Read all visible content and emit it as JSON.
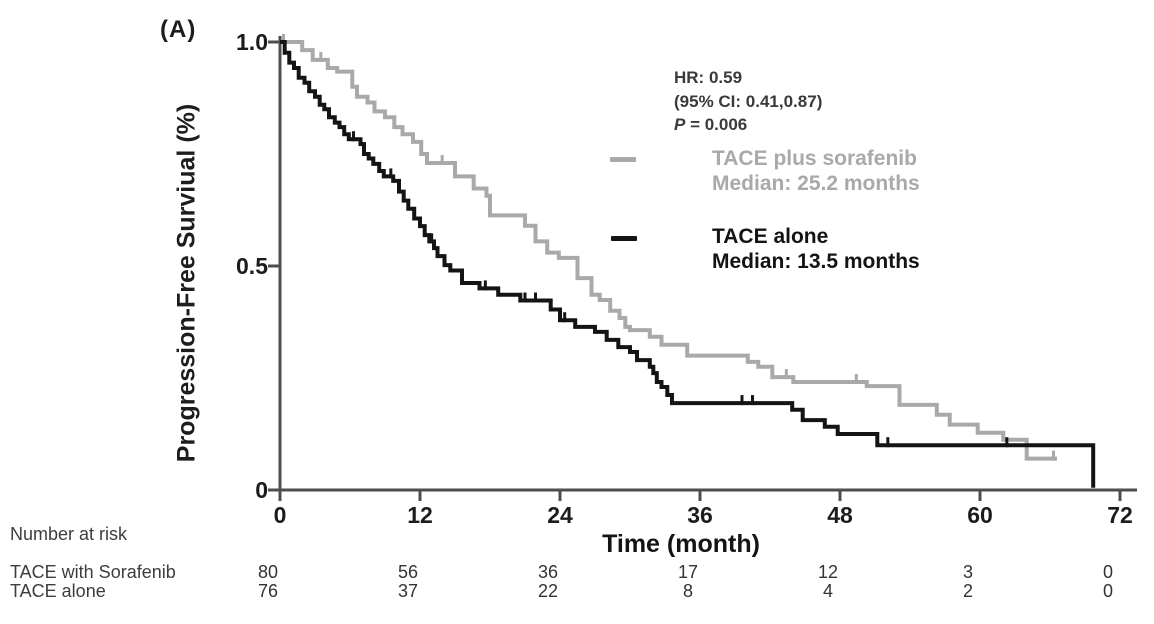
{
  "figure": {
    "panel_label": "(A)",
    "background": "#ffffff"
  },
  "stats": {
    "hr": "HR: 0.59",
    "ci": "(95% CI: 0.41,0.87)",
    "p_italic": "P",
    "p_value": " = 0.006"
  },
  "legend": {
    "sorafenib": {
      "line1": "TACE plus sorafenib",
      "line2": "Median: 25.2 months",
      "color": "#a9a9a9"
    },
    "alone": {
      "line1": "TACE alone",
      "line2": "Median: 13.5 months",
      "color": "#141414"
    }
  },
  "axes": {
    "ylabel": "Progression-Free Surviual (%)",
    "xlabel": "Time (month)",
    "axis_color": "#4d4d4d",
    "y_ticks": [
      {
        "label": "1.0",
        "value": 1.0
      },
      {
        "label": "0.5",
        "value": 0.5
      },
      {
        "label": "0",
        "value": 0
      }
    ],
    "x_ticks": [
      {
        "label": "0",
        "value": 0
      },
      {
        "label": "12",
        "value": 12
      },
      {
        "label": "24",
        "value": 24
      },
      {
        "label": "36",
        "value": 36
      },
      {
        "label": "48",
        "value": 48
      },
      {
        "label": "60",
        "value": 60
      },
      {
        "label": "72",
        "value": 72
      }
    ]
  },
  "risk_table": {
    "title": "Number at risk",
    "times": [
      0,
      12,
      24,
      36,
      48,
      60,
      72
    ],
    "rows": [
      {
        "label": "TACE with Sorafenib",
        "values": [
          "80",
          "56",
          "36",
          "17",
          "12",
          "3",
          "0"
        ]
      },
      {
        "label": "TACE alone",
        "values": [
          "76",
          "37",
          "22",
          "8",
          "4",
          "2",
          "0"
        ]
      }
    ]
  },
  "chart_data": {
    "type": "line",
    "variant": "kaplan_meier_step",
    "title": "(A)",
    "xlabel": "Time (month)",
    "ylabel": "Progression-Free Surviual (%)",
    "xlim": [
      0,
      72
    ],
    "ylim": [
      0,
      1.0
    ],
    "x_tick_values": [
      0,
      12,
      24,
      36,
      48,
      60,
      72
    ],
    "y_tick_values": [
      0,
      0.5,
      1.0
    ],
    "grid": false,
    "legend_position": "upper right",
    "annotations": [
      "HR: 0.59",
      "(95% CI: 0.41,0.87)",
      "P = 0.006"
    ],
    "series": [
      {
        "name": "TACE plus sorafenib",
        "median_months": 25.2,
        "color": "#a9a9a9",
        "steps": [
          [
            0,
            1.0
          ],
          [
            1.9,
            0.982
          ],
          [
            2.8,
            0.96
          ],
          [
            4.1,
            0.942
          ],
          [
            4.9,
            0.934
          ],
          [
            6.2,
            0.9
          ],
          [
            6.6,
            0.878
          ],
          [
            7.5,
            0.865
          ],
          [
            8.1,
            0.845
          ],
          [
            9.0,
            0.832
          ],
          [
            9.8,
            0.81
          ],
          [
            10.5,
            0.794
          ],
          [
            11.4,
            0.777
          ],
          [
            12.1,
            0.75
          ],
          [
            12.6,
            0.73
          ],
          [
            15.0,
            0.7
          ],
          [
            16.6,
            0.673
          ],
          [
            17.7,
            0.657
          ],
          [
            18.0,
            0.613
          ],
          [
            21.0,
            0.59
          ],
          [
            21.9,
            0.555
          ],
          [
            22.9,
            0.53
          ],
          [
            23.9,
            0.518
          ],
          [
            25.5,
            0.473
          ],
          [
            26.7,
            0.436
          ],
          [
            27.4,
            0.424
          ],
          [
            28.3,
            0.4
          ],
          [
            29.1,
            0.384
          ],
          [
            29.6,
            0.364
          ],
          [
            30.0,
            0.357
          ],
          [
            31.7,
            0.342
          ],
          [
            32.7,
            0.324
          ],
          [
            34.9,
            0.3
          ],
          [
            40.1,
            0.286
          ],
          [
            41.0,
            0.275
          ],
          [
            42.2,
            0.252
          ],
          [
            44.0,
            0.241
          ],
          [
            50.3,
            0.232
          ],
          [
            53.1,
            0.19
          ],
          [
            56.3,
            0.168
          ],
          [
            57.4,
            0.146
          ],
          [
            59.8,
            0.128
          ],
          [
            62.0,
            0.112
          ],
          [
            64.0,
            0.07
          ],
          [
            66.6,
            0.07
          ]
        ],
        "censor_marks": [
          [
            0.3,
            1.0
          ],
          [
            3.5,
            0.96
          ],
          [
            13.9,
            0.73
          ],
          [
            43.4,
            0.252
          ],
          [
            49.4,
            0.241
          ],
          [
            66.3,
            0.07
          ]
        ]
      },
      {
        "name": "TACE alone",
        "median_months": 13.5,
        "color": "#141414",
        "steps": [
          [
            0,
            1.0
          ],
          [
            0.4,
            0.976
          ],
          [
            0.8,
            0.954
          ],
          [
            1.2,
            0.942
          ],
          [
            1.6,
            0.92
          ],
          [
            2.1,
            0.909
          ],
          [
            2.5,
            0.89
          ],
          [
            3.0,
            0.878
          ],
          [
            3.4,
            0.86
          ],
          [
            3.8,
            0.85
          ],
          [
            4.2,
            0.832
          ],
          [
            4.7,
            0.82
          ],
          [
            5.1,
            0.81
          ],
          [
            5.5,
            0.794
          ],
          [
            5.9,
            0.783
          ],
          [
            6.9,
            0.772
          ],
          [
            7.2,
            0.75
          ],
          [
            7.6,
            0.74
          ],
          [
            8.0,
            0.728
          ],
          [
            8.5,
            0.712
          ],
          [
            8.9,
            0.7
          ],
          [
            9.7,
            0.69
          ],
          [
            10.2,
            0.666
          ],
          [
            10.6,
            0.646
          ],
          [
            11.0,
            0.628
          ],
          [
            11.5,
            0.606
          ],
          [
            12.0,
            0.589
          ],
          [
            12.4,
            0.569
          ],
          [
            12.8,
            0.555
          ],
          [
            13.2,
            0.54
          ],
          [
            13.5,
            0.522
          ],
          [
            14.1,
            0.502
          ],
          [
            14.6,
            0.49
          ],
          [
            15.6,
            0.462
          ],
          [
            17.1,
            0.45
          ],
          [
            18.7,
            0.436
          ],
          [
            20.6,
            0.423
          ],
          [
            23.2,
            0.403
          ],
          [
            24.0,
            0.379
          ],
          [
            25.3,
            0.364
          ],
          [
            27.0,
            0.353
          ],
          [
            28.0,
            0.335
          ],
          [
            29.0,
            0.319
          ],
          [
            30.0,
            0.308
          ],
          [
            30.6,
            0.29
          ],
          [
            31.7,
            0.275
          ],
          [
            32.0,
            0.261
          ],
          [
            32.3,
            0.241
          ],
          [
            32.7,
            0.23
          ],
          [
            33.2,
            0.212
          ],
          [
            33.6,
            0.194
          ],
          [
            43.9,
            0.179
          ],
          [
            44.8,
            0.156
          ],
          [
            46.7,
            0.141
          ],
          [
            47.8,
            0.125
          ],
          [
            51.2,
            0.1
          ],
          [
            69.7,
            0.005
          ]
        ],
        "censor_marks": [
          [
            6.3,
            0.783
          ],
          [
            9.5,
            0.7
          ],
          [
            13.0,
            0.555
          ],
          [
            17.6,
            0.45
          ],
          [
            21.0,
            0.423
          ],
          [
            21.9,
            0.423
          ],
          [
            24.4,
            0.379
          ],
          [
            39.6,
            0.194
          ],
          [
            40.5,
            0.194
          ],
          [
            52.1,
            0.1
          ],
          [
            62.3,
            0.1
          ]
        ]
      }
    ],
    "number_at_risk": {
      "times": [
        0,
        12,
        24,
        36,
        48,
        60,
        72
      ],
      "TACE with Sorafenib": [
        80,
        56,
        36,
        17,
        12,
        3,
        0
      ],
      "TACE alone": [
        76,
        37,
        22,
        8,
        4,
        2,
        0
      ]
    }
  }
}
